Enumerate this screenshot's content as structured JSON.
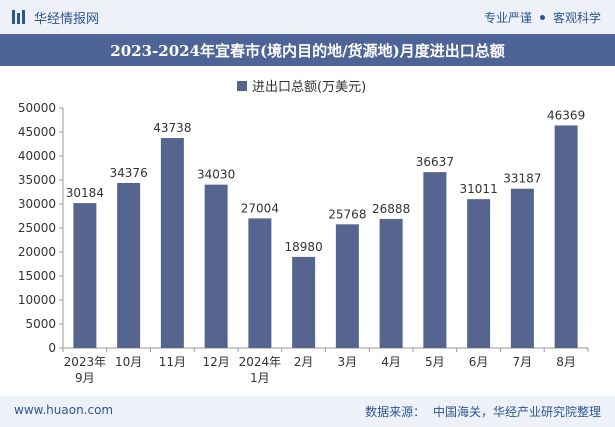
{
  "header": {
    "logo_text": "华经情报网",
    "tagline_left": "专业严谨",
    "tagline_right": "客观科学"
  },
  "title": "2023-2024年宜春市(境内目的地/货源地)月度进出口总额",
  "footer": {
    "website": "www.huaon.com",
    "source_label": "数据来源：",
    "source_value": "中国海关，华经产业研究院整理"
  },
  "colors": {
    "bar": "#56658f",
    "title_bar": "#4f6496",
    "band": "#eef2f8",
    "accent": "#2b5592"
  },
  "chart_data": {
    "type": "bar",
    "categories": [
      "2023年\n9月",
      "10月",
      "11月",
      "12月",
      "2024年\n1月",
      "2月",
      "3月",
      "4月",
      "5月",
      "6月",
      "7月",
      "8月"
    ],
    "series": [
      {
        "name": "进出口总额(万美元)",
        "values": [
          30184,
          34376,
          43738,
          34030,
          27004,
          18980,
          25768,
          26888,
          36637,
          31011,
          33187,
          46369
        ]
      }
    ],
    "ylim": [
      0,
      50000
    ],
    "yticks": [
      0,
      5000,
      10000,
      15000,
      20000,
      25000,
      30000,
      35000,
      40000,
      45000,
      50000
    ],
    "grid": false,
    "legend_position": "top-center",
    "data_labels": true
  }
}
